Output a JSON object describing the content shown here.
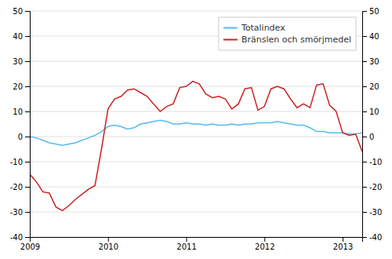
{
  "chart_data": {
    "type": "line",
    "categories": [
      "2009",
      null,
      null,
      null,
      null,
      null,
      null,
      null,
      null,
      null,
      null,
      null,
      "2010",
      null,
      null,
      null,
      null,
      null,
      null,
      null,
      null,
      null,
      null,
      null,
      "2011",
      null,
      null,
      null,
      null,
      null,
      null,
      null,
      null,
      null,
      null,
      null,
      "2012",
      null,
      null,
      null,
      null,
      null,
      null,
      null,
      null,
      null,
      null,
      null,
      "2013",
      null,
      null,
      null
    ],
    "series": [
      {
        "name": "Totalindex",
        "color": "#55bbee",
        "values": [
          0.0,
          -0.5,
          -1.5,
          -2.5,
          -3.0,
          -3.5,
          -3.0,
          -2.5,
          -1.5,
          -0.5,
          0.5,
          2.0,
          4.0,
          4.5,
          4.0,
          3.0,
          3.5,
          5.0,
          5.5,
          6.0,
          6.5,
          6.0,
          5.0,
          5.0,
          5.5,
          5.0,
          5.0,
          4.5,
          5.0,
          4.5,
          4.5,
          5.0,
          4.5,
          5.0,
          5.0,
          5.5,
          5.5,
          5.5,
          6.0,
          5.5,
          5.0,
          4.5,
          4.5,
          3.5,
          2.0,
          2.0,
          1.5,
          1.5,
          1.5,
          1.0,
          1.0,
          1.5
        ]
      },
      {
        "name": "Bränslen och smörjmedel",
        "color": "#cc2222",
        "values": [
          -15.0,
          -18.0,
          -22.0,
          -22.5,
          -28.0,
          -29.5,
          -27.5,
          -25.0,
          -23.0,
          -21.0,
          -19.5,
          -5.0,
          11.0,
          15.0,
          16.0,
          18.5,
          19.0,
          17.5,
          16.0,
          13.0,
          10.0,
          12.0,
          13.0,
          19.5,
          20.0,
          22.0,
          21.0,
          17.0,
          15.5,
          16.0,
          15.0,
          11.0,
          13.0,
          19.0,
          19.5,
          10.5,
          12.0,
          19.0,
          20.0,
          19.0,
          15.0,
          11.5,
          13.0,
          11.5,
          20.5,
          21.0,
          12.5,
          10.0,
          1.5,
          0.5,
          1.0,
          -6.0
        ]
      }
    ],
    "ylim": [
      -40,
      50
    ],
    "yticks": [
      -40,
      -30,
      -20,
      -10,
      0,
      10,
      20,
      30,
      40,
      50
    ],
    "y2lim": [
      -40,
      50
    ],
    "y2ticks": [
      -40,
      -30,
      -20,
      -10,
      0,
      10,
      20,
      30,
      40,
      50
    ],
    "grid": true,
    "legend": "top-right"
  }
}
